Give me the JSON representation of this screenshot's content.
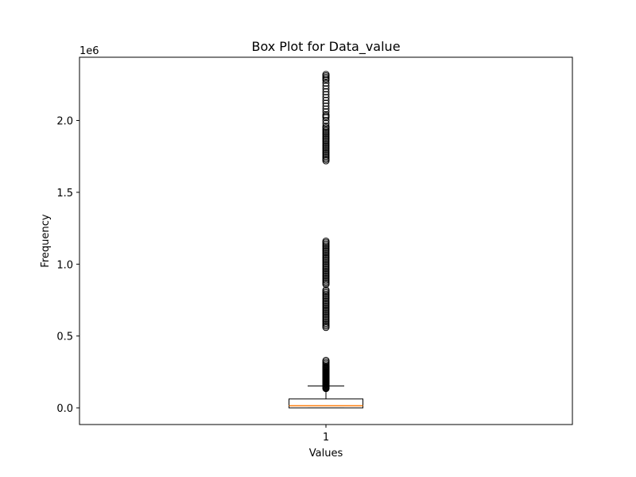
{
  "chart_data": {
    "type": "box",
    "title": "Box Plot for Data_value",
    "xlabel": "Values",
    "ylabel": "Frequency",
    "y_offset_text": "1e6",
    "y_multiplier": 1000000,
    "ylim": [
      -116000,
      2440000
    ],
    "y_ticks": [
      0.0,
      0.5,
      1.0,
      1.5,
      2.0
    ],
    "y_tick_labels": [
      "0.0",
      "0.5",
      "1.0",
      "1.5",
      "2.0"
    ],
    "categories": [
      "1"
    ],
    "box": {
      "whisker_low": 0,
      "q1": 0,
      "median": 15000,
      "q3": 62000,
      "whisker_high": 152000
    },
    "outliers": [
      135000,
      140000,
      145000,
      150000,
      155000,
      160000,
      165000,
      170000,
      175000,
      180000,
      185000,
      190000,
      195000,
      200000,
      205000,
      210000,
      215000,
      220000,
      225000,
      230000,
      235000,
      240000,
      245000,
      250000,
      255000,
      260000,
      265000,
      270000,
      275000,
      280000,
      285000,
      290000,
      300000,
      310000,
      320000,
      330000,
      560000,
      570000,
      580000,
      590000,
      600000,
      610000,
      620000,
      630000,
      640000,
      650000,
      660000,
      670000,
      680000,
      690000,
      700000,
      710000,
      720000,
      730000,
      740000,
      750000,
      760000,
      770000,
      780000,
      790000,
      800000,
      810000,
      820000,
      860000,
      870000,
      880000,
      890000,
      900000,
      910000,
      920000,
      930000,
      940000,
      950000,
      960000,
      970000,
      980000,
      990000,
      1000000,
      1010000,
      1020000,
      1030000,
      1040000,
      1050000,
      1060000,
      1070000,
      1080000,
      1090000,
      1100000,
      1110000,
      1120000,
      1130000,
      1140000,
      1150000,
      1160000,
      1720000,
      1730000,
      1740000,
      1750000,
      1760000,
      1770000,
      1780000,
      1790000,
      1800000,
      1810000,
      1820000,
      1830000,
      1840000,
      1850000,
      1860000,
      1870000,
      1880000,
      1890000,
      1900000,
      1910000,
      1920000,
      1930000,
      1940000,
      1950000,
      1960000,
      1980000,
      2000000,
      2020000,
      2030000,
      2040000,
      2060000,
      2080000,
      2100000,
      2120000,
      2140000,
      2160000,
      2180000,
      2200000,
      2220000,
      2240000,
      2260000,
      2280000,
      2290000,
      2300000,
      2310000,
      2320000
    ],
    "colors": {
      "box": "#000000",
      "median": "#ff7f0e",
      "outlier": "#000000"
    },
    "grid": false
  }
}
